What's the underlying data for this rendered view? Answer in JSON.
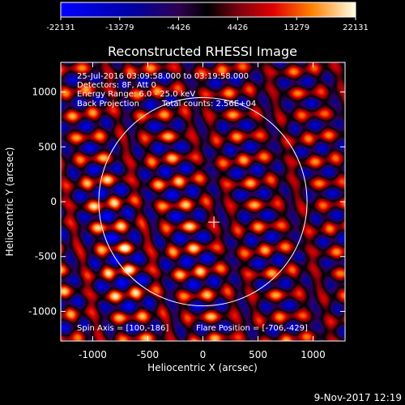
{
  "chart_data": {
    "type": "heatmap",
    "title": "Reconstructed RHESSI Image",
    "xlabel": "Heliocentric X (arcsec)",
    "ylabel": "Heliocentric Y (arcsec)",
    "xlim": [
      -1290,
      1290
    ],
    "ylim": [
      -1270,
      1270
    ],
    "x_ticks": [
      -1000,
      -500,
      0,
      500,
      1000
    ],
    "y_ticks": [
      -1000,
      -500,
      0,
      500,
      1000
    ],
    "colorbar": {
      "min": -22131,
      "max": 22131,
      "tick_values": [
        -22131,
        -13279,
        -4426,
        4426,
        13279,
        22131
      ],
      "tick_labels": [
        "-22131",
        "-13279",
        "-4426",
        "4426",
        "13279",
        "22131"
      ]
    },
    "annotations": [
      "25-Jul-2016 03:09:58.000 to 03:19:58.000",
      "Detectors: 8F, Att 0",
      "Energy Range: 6.0 - 25.0 keV",
      "Back Projection",
      "Total counts: 2.56E+04",
      "Spin Axis = [100,-186]",
      "Flare Position = [-706,-429]"
    ],
    "solar_limb": {
      "center": [
        0,
        0
      ],
      "radius_arcsec": 945
    },
    "spin_axis_marker": [
      100,
      -186
    ],
    "plot_date": "9-Nov-2017 12:19"
  }
}
